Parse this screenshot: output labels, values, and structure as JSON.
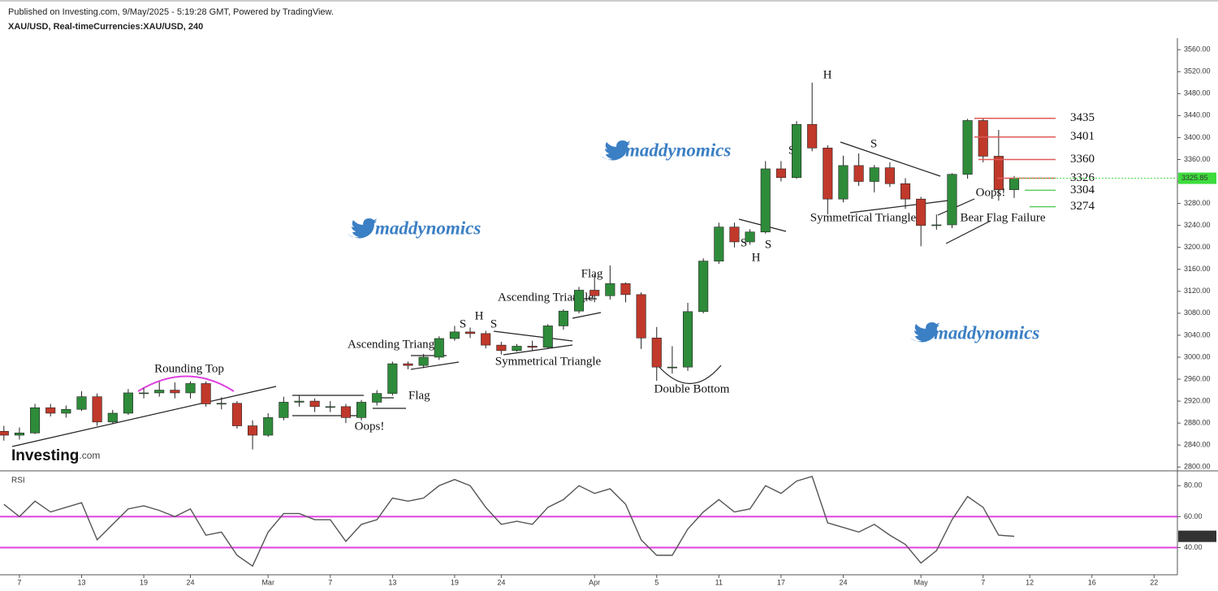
{
  "header": {
    "published": "Published on Investing.com, 9/May/2025 - 5:19:28 GMT, Powered by TradingView.",
    "symbol": "XAU/USD, Real-timeCurrencies:XAU/USD, 240"
  },
  "logo": {
    "name": "Investing",
    "suffix": ".com"
  },
  "watermarks": [
    "maddynomics",
    "maddynomics",
    "maddynomics"
  ],
  "annotations": [
    "Rounding Top",
    "Flag",
    "Oops!",
    "Ascending Triangle",
    "S",
    "H",
    "S",
    "Symmetrical Triangle",
    "Ascending Triangle",
    "Flag",
    "Double Bottom",
    "S",
    "H",
    "S",
    "S",
    "H",
    "S",
    "Symmetrical Triangle",
    "Oops!",
    "Bear Flag Failure"
  ],
  "chart_data": [
    {
      "type": "candlestick",
      "up_color": "#2e8b3a",
      "down_color": "#c0392b",
      "open": [
        2865,
        2858,
        2862,
        2908,
        2898,
        2905,
        2928,
        2882,
        2898,
        2935,
        2935,
        2940,
        2935,
        2952,
        2915,
        2916,
        2875,
        2858,
        2890,
        2918,
        2920,
        2910,
        2910,
        2890,
        2918,
        2934,
        2988,
        2985,
        3000,
        3034,
        3046,
        3043,
        3022,
        3012,
        3020,
        3018,
        3057,
        3084,
        3122,
        3112,
        3134,
        3114,
        3035,
        2982,
        2982,
        3083,
        3175,
        3237,
        3210,
        3228,
        3343,
        3327,
        3424,
        3381,
        3288,
        3349,
        3320,
        3345,
        3316,
        3288,
        3240,
        3241,
        3333,
        3431,
        3366,
        3305
      ],
      "high": [
        2875,
        2872,
        2915,
        2915,
        2912,
        2938,
        2934,
        2904,
        2942,
        2944,
        2955,
        2954,
        2956,
        2956,
        2927,
        2920,
        2885,
        2898,
        2928,
        2930,
        2925,
        2920,
        2915,
        2922,
        2940,
        2992,
        2992,
        3006,
        3038,
        3057,
        3054,
        3048,
        3028,
        3024,
        3030,
        3060,
        3087,
        3128,
        3150,
        3167,
        3136,
        3118,
        3055,
        3020,
        3099,
        3180,
        3245,
        3245,
        3233,
        3357,
        3357,
        3430,
        3500,
        3386,
        3367,
        3371,
        3350,
        3355,
        3326,
        3292,
        3260,
        3335,
        3434,
        3435,
        3414,
        3330
      ],
      "low": [
        2848,
        2850,
        2860,
        2892,
        2890,
        2902,
        2875,
        2878,
        2895,
        2925,
        2928,
        2925,
        2925,
        2910,
        2905,
        2870,
        2832,
        2855,
        2885,
        2910,
        2900,
        2900,
        2880,
        2885,
        2912,
        2930,
        2978,
        2980,
        2995,
        3030,
        3035,
        3016,
        3005,
        3010,
        3012,
        3015,
        3050,
        3080,
        3100,
        3105,
        3100,
        3015,
        2957,
        2970,
        2975,
        3080,
        3170,
        3200,
        3205,
        3225,
        3320,
        3325,
        3375,
        3260,
        3282,
        3312,
        3300,
        3310,
        3270,
        3202,
        3232,
        3235,
        3325,
        3355,
        3285,
        3290
      ],
      "close": [
        2858,
        2862,
        2908,
        2898,
        2905,
        2928,
        2882,
        2898,
        2935,
        2935,
        2940,
        2935,
        2952,
        2915,
        2916,
        2875,
        2858,
        2890,
        2918,
        2920,
        2910,
        2910,
        2890,
        2918,
        2934,
        2988,
        2985,
        3000,
        3034,
        3046,
        3043,
        3022,
        3012,
        3020,
        3018,
        3057,
        3084,
        3122,
        3112,
        3134,
        3114,
        3035,
        2982,
        2982,
        3083,
        3175,
        3237,
        3210,
        3228,
        3343,
        3327,
        3424,
        3381,
        3288,
        3349,
        3320,
        3345,
        3316,
        3288,
        3240,
        3241,
        3333,
        3431,
        3366,
        3305,
        3325.85
      ],
      "last_color": "#3ddc3d",
      "xlim": [
        -0.25,
        75.5
      ],
      "ylim": [
        2793,
        3581
      ],
      "yticks": [
        {
          "value": 2800,
          "label": "2800.00"
        },
        {
          "value": 2840,
          "label": "2840.00"
        },
        {
          "value": 2880,
          "label": "2880.00"
        },
        {
          "value": 2920,
          "label": "2920.00"
        },
        {
          "value": 2960,
          "label": "2960.00"
        },
        {
          "value": 3000,
          "label": "3000.00"
        },
        {
          "value": 3040,
          "label": "3040.00"
        },
        {
          "value": 3080,
          "label": "3080.00"
        },
        {
          "value": 3120,
          "label": "3120.00"
        },
        {
          "value": 3160,
          "label": "3160.00"
        },
        {
          "value": 3200,
          "label": "3200.00"
        },
        {
          "value": 3240,
          "label": "3240.00"
        },
        {
          "value": 3280,
          "label": "3280.00"
        },
        {
          "value": 3320,
          "label": "3320.00"
        },
        {
          "value": 3360,
          "label": "3360.00"
        },
        {
          "value": 3400,
          "label": "3400.00"
        },
        {
          "value": 3440,
          "label": "3440.00"
        },
        {
          "value": 3480,
          "label": "3480.00"
        },
        {
          "value": 3520,
          "label": "3520.00"
        },
        {
          "value": 3560,
          "label": "3560.00"
        }
      ],
      "levels": [
        {
          "value": 3435,
          "color": "#e05a5a"
        },
        {
          "value": 3401,
          "color": "#e05a5a"
        },
        {
          "value": 3360,
          "color": "#e05a5a"
        },
        {
          "value": 3326,
          "color": "#e05a5a"
        },
        {
          "value": 3304,
          "color": "#5ccc5c"
        },
        {
          "value": 3274,
          "color": "#5ccc5c"
        }
      ]
    },
    {
      "type": "line",
      "title": "RSI",
      "color": "#555555",
      "values": [
        68,
        60,
        70,
        63,
        66,
        69,
        45,
        55,
        65,
        67,
        64,
        60,
        65,
        48,
        50,
        35,
        28,
        50,
        62,
        62,
        58,
        58,
        44,
        55,
        58,
        72,
        70,
        72,
        80,
        84,
        80,
        66,
        55,
        57,
        55,
        66,
        71,
        80,
        75,
        78,
        68,
        45,
        35,
        35,
        52,
        63,
        71,
        63,
        65,
        80,
        75,
        83,
        86,
        56,
        53,
        50,
        55,
        48,
        42,
        30,
        38,
        58,
        73,
        66,
        48,
        47.2686
      ],
      "bands": [
        60,
        40
      ],
      "band_color": "#e040e0",
      "xlim": [
        -0.25,
        75.5
      ],
      "ylim": [
        22.4,
        89.6
      ],
      "yticks": [
        {
          "value": 40,
          "label": "40.00"
        },
        {
          "value": 60,
          "label": "60.00"
        },
        {
          "value": 80,
          "label": "80.00"
        }
      ],
      "xticks": [
        {
          "value": 1,
          "label": "7"
        },
        {
          "value": 5,
          "label": "13"
        },
        {
          "value": 9,
          "label": "19"
        },
        {
          "value": 12,
          "label": "24"
        },
        {
          "value": 17,
          "label": "Mar"
        },
        {
          "value": 21,
          "label": "7"
        },
        {
          "value": 25,
          "label": "13"
        },
        {
          "value": 29,
          "label": "19"
        },
        {
          "value": 32,
          "label": "24"
        },
        {
          "value": 38,
          "label": "Apr"
        },
        {
          "value": 42,
          "label": "5"
        },
        {
          "value": 46,
          "label": "11"
        },
        {
          "value": 50,
          "label": "17"
        },
        {
          "value": 54,
          "label": "24"
        },
        {
          "value": 59,
          "label": "May"
        },
        {
          "value": 63,
          "label": "7"
        },
        {
          "value": 66,
          "label": "12"
        },
        {
          "value": 70,
          "label": "16"
        },
        {
          "value": 74,
          "label": "22"
        }
      ]
    }
  ]
}
